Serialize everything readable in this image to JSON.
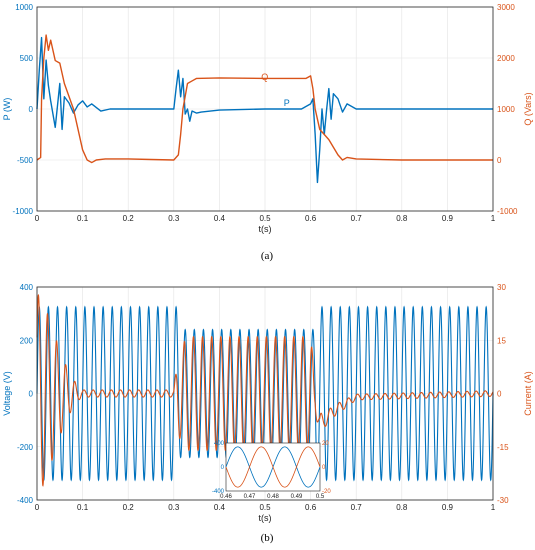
{
  "colors": {
    "blue": "#0072BD",
    "orange": "#D95319",
    "grid": "#e3e3e3",
    "axis": "#222222"
  },
  "captions": {
    "a": "(a)",
    "b": "(b)"
  },
  "chart_data": [
    {
      "type": "line",
      "panel": "a",
      "xlabel": "t(s)",
      "ylabel_left": "P (W)",
      "ylabel_right": "Q (Vars)",
      "xlim": [
        0,
        1
      ],
      "ylim_left": [
        -1000,
        1000
      ],
      "ylim_right": [
        -1000,
        3000
      ],
      "xticks": [
        "0",
        "0.1",
        "0.2",
        "0.3",
        "0.4",
        "0.5",
        "0.6",
        "0.7",
        "0.8",
        "0.9",
        "1"
      ],
      "yticks_left": [
        "1000",
        "500",
        "0",
        "-500",
        "-1000"
      ],
      "yticks_right": [
        "3000",
        "2000",
        "1000",
        "0",
        "-1000"
      ],
      "grid": true,
      "series": [
        {
          "name": "P",
          "axis": "left",
          "color": "blue",
          "label_at": [
            0.46,
            10
          ],
          "x": [
            0,
            0.005,
            0.01,
            0.015,
            0.02,
            0.025,
            0.03,
            0.04,
            0.05,
            0.055,
            0.06,
            0.07,
            0.08,
            0.09,
            0.1,
            0.11,
            0.12,
            0.14,
            0.16,
            0.2,
            0.25,
            0.3,
            0.305,
            0.31,
            0.315,
            0.32,
            0.325,
            0.33,
            0.335,
            0.34,
            0.35,
            0.36,
            0.38,
            0.4,
            0.5,
            0.58,
            0.6,
            0.605,
            0.61,
            0.615,
            0.62,
            0.625,
            0.63,
            0.635,
            0.64,
            0.645,
            0.65,
            0.66,
            0.67,
            0.68,
            0.7,
            0.75,
            0.8,
            0.9,
            1.0
          ],
          "values": [
            0,
            380,
            700,
            100,
            480,
            230,
            80,
            -180,
            250,
            -200,
            120,
            60,
            -40,
            40,
            80,
            20,
            50,
            -20,
            0,
            0,
            0,
            0,
            200,
            380,
            120,
            300,
            -50,
            0,
            -120,
            -20,
            -40,
            -30,
            -20,
            -10,
            0,
            0,
            50,
            100,
            -250,
            -720,
            -400,
            0,
            -250,
            -10,
            200,
            -100,
            150,
            100,
            -30,
            50,
            0,
            0,
            0,
            0,
            0
          ]
        },
        {
          "name": "Q",
          "axis": "right",
          "color": "orange",
          "label_at": [
            0.46,
            1650
          ],
          "x": [
            0,
            0.008,
            0.01,
            0.015,
            0.02,
            0.025,
            0.03,
            0.04,
            0.05,
            0.06,
            0.08,
            0.1,
            0.11,
            0.12,
            0.13,
            0.15,
            0.2,
            0.25,
            0.3,
            0.31,
            0.315,
            0.32,
            0.33,
            0.34,
            0.35,
            0.4,
            0.5,
            0.59,
            0.6,
            0.605,
            0.61,
            0.615,
            0.62,
            0.63,
            0.64,
            0.65,
            0.66,
            0.67,
            0.68,
            0.7,
            0.8,
            0.9,
            1.0
          ],
          "values": [
            0,
            50,
            1200,
            2000,
            2450,
            2150,
            2350,
            1950,
            1900,
            1500,
            1000,
            200,
            0,
            -50,
            0,
            20,
            20,
            10,
            0,
            100,
            500,
            1000,
            1500,
            1550,
            1600,
            1610,
            1600,
            1600,
            1650,
            1400,
            1000,
            800,
            600,
            500,
            400,
            250,
            100,
            0,
            50,
            20,
            0,
            0,
            0
          ]
        }
      ]
    },
    {
      "type": "line",
      "panel": "b",
      "xlabel": "t(s)",
      "ylabel_left": "Voltage (V)",
      "ylabel_right": "Current (A)",
      "xlim": [
        0,
        1
      ],
      "ylim_left": [
        -400,
        400
      ],
      "ylim_right": [
        -30,
        30
      ],
      "xticks": [
        "0",
        "0.1",
        "0.2",
        "0.3",
        "0.4",
        "0.5",
        "0.6",
        "0.7",
        "0.8",
        "0.9",
        "1"
      ],
      "yticks_left": [
        "400",
        "200",
        "0",
        "-200",
        "-400"
      ],
      "yticks_right": [
        "30",
        "15",
        "0",
        "-15",
        "-30"
      ],
      "grid": true,
      "voltage": {
        "name": "Voltage",
        "axis": "left",
        "color": "blue",
        "frequency_hz": 50,
        "amplitude_segments": [
          {
            "from": 0,
            "to": 0.31,
            "amplitude": 325
          },
          {
            "from": 0.31,
            "to": 0.61,
            "amplitude": 240
          },
          {
            "from": 0.61,
            "to": 1.0,
            "amplitude": 325
          }
        ]
      },
      "current": {
        "name": "Current",
        "axis": "right",
        "color": "orange",
        "frequency_hz": 50,
        "envelope": {
          "t": [
            0,
            0.01,
            0.03,
            0.05,
            0.07,
            0.09,
            0.1,
            0.3,
            0.31,
            0.33,
            0.6,
            0.61,
            0.63,
            0.7,
            1.0
          ],
          "amplitude": [
            28,
            27,
            20,
            12,
            6,
            2,
            1,
            1,
            12,
            16,
            16,
            5,
            2,
            0.8,
            0.8
          ]
        },
        "offset": {
          "t": [
            0,
            0.3,
            0.61,
            0.62,
            0.65,
            0.7,
            1.0
          ],
          "value": [
            0,
            0,
            0,
            -9,
            -5,
            -1,
            0
          ]
        }
      },
      "inset": {
        "xlim": [
          0.46,
          0.5
        ],
        "xticks": [
          "0.46",
          "0.47",
          "0.48",
          "0.49",
          "0.5"
        ],
        "yticks_left": [
          "400",
          "0",
          "-400"
        ],
        "yticks_right": [
          "20",
          "0",
          "-20"
        ],
        "voltage_amplitude": 240,
        "current_amplitude": 16,
        "current_phase_deg": 180
      }
    }
  ]
}
